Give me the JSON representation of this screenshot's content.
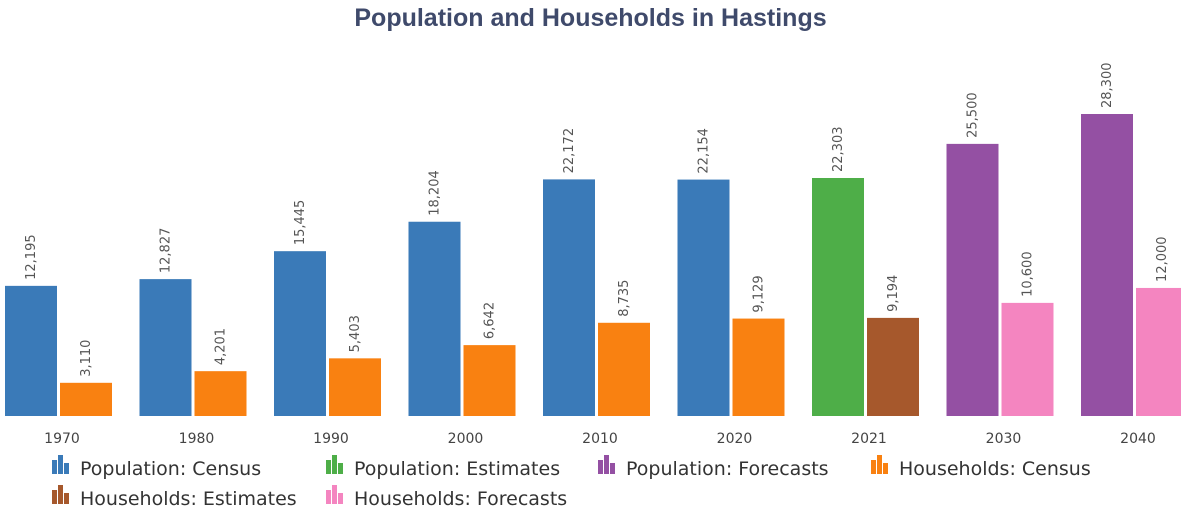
{
  "chart_data": {
    "type": "bar",
    "title": "Population and Households in Hastings",
    "categories": [
      "1970",
      "1980",
      "1990",
      "2000",
      "2010",
      "2020",
      "2021",
      "2030",
      "2040"
    ],
    "ylim": [
      0,
      30000
    ],
    "grid": false,
    "legend_position": "bottom",
    "series": [
      {
        "name": "Population: Census",
        "group": "population",
        "color": "#3a7ab8",
        "values": [
          12195,
          12827,
          15445,
          18204,
          22172,
          22154,
          null,
          null,
          null
        ],
        "labels": [
          "12,195",
          "12,827",
          "15,445",
          "18,204",
          "22,172",
          "22,154",
          "",
          "",
          ""
        ]
      },
      {
        "name": "Population: Estimates",
        "group": "population",
        "color": "#4eae48",
        "values": [
          null,
          null,
          null,
          null,
          null,
          null,
          22303,
          null,
          null
        ],
        "labels": [
          "",
          "",
          "",
          "",
          "",
          "",
          "22,303",
          "",
          ""
        ]
      },
      {
        "name": "Population: Forecasts",
        "group": "population",
        "color": "#9450a3",
        "values": [
          null,
          null,
          null,
          null,
          null,
          null,
          null,
          25500,
          28300
        ],
        "labels": [
          "",
          "",
          "",
          "",
          "",
          "",
          "",
          "25,500",
          "28,300"
        ]
      },
      {
        "name": "Households: Census",
        "group": "households",
        "color": "#f98111",
        "values": [
          3110,
          4201,
          5403,
          6642,
          8735,
          9129,
          null,
          null,
          null
        ],
        "labels": [
          "3,110",
          "4,201",
          "5,403",
          "6,642",
          "8,735",
          "9,129",
          "",
          "",
          ""
        ]
      },
      {
        "name": "Households: Estimates",
        "group": "households",
        "color": "#a6582c",
        "values": [
          null,
          null,
          null,
          null,
          null,
          null,
          9194,
          null,
          null
        ],
        "labels": [
          "",
          "",
          "",
          "",
          "",
          "",
          "9,194",
          "",
          ""
        ]
      },
      {
        "name": "Households: Forecasts",
        "group": "households",
        "color": "#f485c0",
        "values": [
          null,
          null,
          null,
          null,
          null,
          null,
          null,
          10600,
          12000
        ],
        "labels": [
          "",
          "",
          "",
          "",
          "",
          "",
          "",
          "10,600",
          "12,000"
        ]
      }
    ]
  }
}
